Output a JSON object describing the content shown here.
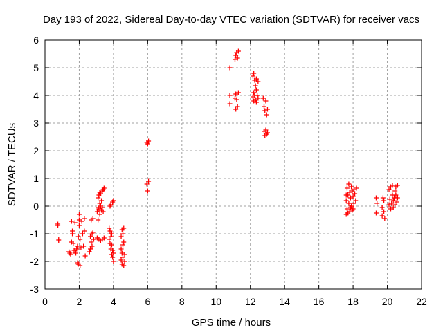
{
  "chart_data": {
    "type": "scatter",
    "title": "Day 193 of 2022, Sidereal Day-to-day VTEC variation (SDTVAR) for receiver vacs",
    "xlabel": "GPS time / hours",
    "ylabel": "SDTVAR / TECUs",
    "xlim": [
      0,
      22
    ],
    "ylim": [
      -3,
      6
    ],
    "xticks": [
      "0",
      "2",
      "4",
      "6",
      "8",
      "10",
      "12",
      "14",
      "16",
      "18",
      "20",
      "22"
    ],
    "yticks": [
      "-3",
      "-2",
      "-1",
      "0",
      "1",
      "2",
      "3",
      "4",
      "5",
      "6"
    ],
    "grid": true,
    "marker": "plus",
    "series": [
      {
        "name": "SDTVAR",
        "color": "#ff0000",
        "points": [
          [
            0.75,
            -0.65
          ],
          [
            0.75,
            -0.7
          ],
          [
            0.8,
            -1.2
          ],
          [
            0.8,
            -1.25
          ],
          [
            1.4,
            -1.65
          ],
          [
            1.45,
            -1.7
          ],
          [
            1.5,
            -1.75
          ],
          [
            1.55,
            -0.55
          ],
          [
            1.55,
            -1.3
          ],
          [
            1.6,
            -0.9
          ],
          [
            1.6,
            -1.0
          ],
          [
            1.65,
            -1.35
          ],
          [
            1.7,
            -1.6
          ],
          [
            1.75,
            -0.6
          ],
          [
            1.8,
            -1.7
          ],
          [
            1.85,
            -1.55
          ],
          [
            1.9,
            -1.45
          ],
          [
            1.9,
            -2.05
          ],
          [
            1.95,
            -2.1
          ],
          [
            1.95,
            -1.1
          ],
          [
            2.0,
            -0.3
          ],
          [
            2.0,
            -0.5
          ],
          [
            2.0,
            -0.7
          ],
          [
            2.05,
            -1.2
          ],
          [
            2.05,
            -2.15
          ],
          [
            2.1,
            -1.5
          ],
          [
            2.15,
            -0.55
          ],
          [
            2.2,
            -1.0
          ],
          [
            2.25,
            -1.45
          ],
          [
            2.3,
            -0.9
          ],
          [
            2.3,
            -0.45
          ],
          [
            2.35,
            -1.8
          ],
          [
            2.6,
            -1.65
          ],
          [
            2.65,
            -1.55
          ],
          [
            2.65,
            -1.1
          ],
          [
            2.7,
            -1.3
          ],
          [
            2.7,
            -0.5
          ],
          [
            2.75,
            -1.45
          ],
          [
            2.75,
            -1.0
          ],
          [
            2.8,
            -0.95
          ],
          [
            2.8,
            -0.45
          ],
          [
            2.85,
            -1.2
          ],
          [
            3.05,
            -0.2
          ],
          [
            3.05,
            -1.15
          ],
          [
            3.1,
            0.3
          ],
          [
            3.1,
            -0.05
          ],
          [
            3.1,
            -0.5
          ],
          [
            3.15,
            0.4
          ],
          [
            3.15,
            -0.1
          ],
          [
            3.15,
            -1.2
          ],
          [
            3.2,
            0.5
          ],
          [
            3.2,
            0.1
          ],
          [
            3.2,
            -0.3
          ],
          [
            3.25,
            0.45
          ],
          [
            3.25,
            0.0
          ],
          [
            3.25,
            -1.25
          ],
          [
            3.3,
            0.2
          ],
          [
            3.3,
            -0.15
          ],
          [
            3.35,
            0.55
          ],
          [
            3.35,
            -0.05
          ],
          [
            3.35,
            -1.2
          ],
          [
            3.4,
            0.6
          ],
          [
            3.4,
            -0.2
          ],
          [
            3.45,
            0.65
          ],
          [
            3.45,
            -1.15
          ],
          [
            3.75,
            -0.8
          ],
          [
            3.75,
            -1.2
          ],
          [
            3.8,
            -0.9
          ],
          [
            3.8,
            -1.35
          ],
          [
            3.8,
            0.0
          ],
          [
            3.85,
            -1.1
          ],
          [
            3.85,
            -1.55
          ],
          [
            3.85,
            0.05
          ],
          [
            3.9,
            -1.4
          ],
          [
            3.9,
            -1.75
          ],
          [
            3.9,
            -1.0
          ],
          [
            3.95,
            -1.6
          ],
          [
            3.95,
            -1.85
          ],
          [
            3.95,
            0.15
          ],
          [
            4.0,
            -1.7
          ],
          [
            4.0,
            -2.0
          ],
          [
            4.0,
            0.2
          ],
          [
            4.45,
            -1.1
          ],
          [
            4.45,
            -1.55
          ],
          [
            4.45,
            -1.95
          ],
          [
            4.5,
            -0.85
          ],
          [
            4.5,
            -1.7
          ],
          [
            4.5,
            -2.1
          ],
          [
            4.55,
            -1.0
          ],
          [
            4.55,
            -1.4
          ],
          [
            4.55,
            -1.85
          ],
          [
            4.6,
            -0.8
          ],
          [
            4.6,
            -1.3
          ],
          [
            4.6,
            -2.15
          ],
          [
            4.65,
            -1.75
          ],
          [
            4.65,
            -2.0
          ],
          [
            5.95,
            2.3
          ],
          [
            5.95,
            0.8
          ],
          [
            6.0,
            2.25
          ],
          [
            6.0,
            0.55
          ],
          [
            6.05,
            2.35
          ],
          [
            6.05,
            0.9
          ],
          [
            10.8,
            5.0
          ],
          [
            10.8,
            4.0
          ],
          [
            10.8,
            3.7
          ],
          [
            11.1,
            5.3
          ],
          [
            11.1,
            3.9
          ],
          [
            11.15,
            5.45
          ],
          [
            11.15,
            4.05
          ],
          [
            11.15,
            3.5
          ],
          [
            11.2,
            5.55
          ],
          [
            11.2,
            3.85
          ],
          [
            11.25,
            5.35
          ],
          [
            11.25,
            3.6
          ],
          [
            11.3,
            5.6
          ],
          [
            11.3,
            4.1
          ],
          [
            12.15,
            4.7
          ],
          [
            12.15,
            3.95
          ],
          [
            12.2,
            4.8
          ],
          [
            12.2,
            4.1
          ],
          [
            12.2,
            3.8
          ],
          [
            12.25,
            4.55
          ],
          [
            12.25,
            4.0
          ],
          [
            12.3,
            4.35
          ],
          [
            12.3,
            3.85
          ],
          [
            12.35,
            4.6
          ],
          [
            12.35,
            4.2
          ],
          [
            12.35,
            3.75
          ],
          [
            12.4,
            4.0
          ],
          [
            12.45,
            4.5
          ],
          [
            12.45,
            3.9
          ],
          [
            12.75,
            3.9
          ],
          [
            12.8,
            3.6
          ],
          [
            12.8,
            2.7
          ],
          [
            12.85,
            3.45
          ],
          [
            12.85,
            2.55
          ],
          [
            12.9,
            3.8
          ],
          [
            12.9,
            2.75
          ],
          [
            12.95,
            3.3
          ],
          [
            12.95,
            2.6
          ],
          [
            13.0,
            3.5
          ],
          [
            13.0,
            2.65
          ],
          [
            17.6,
            -0.3
          ],
          [
            17.6,
            0.2
          ],
          [
            17.65,
            0.65
          ],
          [
            17.65,
            -0.1
          ],
          [
            17.7,
            0.4
          ],
          [
            17.7,
            -0.25
          ],
          [
            17.75,
            0.8
          ],
          [
            17.75,
            0.1
          ],
          [
            17.8,
            0.5
          ],
          [
            17.8,
            -0.2
          ],
          [
            17.85,
            0.3
          ],
          [
            17.85,
            -0.05
          ],
          [
            17.9,
            0.7
          ],
          [
            17.9,
            0.0
          ],
          [
            17.95,
            0.55
          ],
          [
            17.95,
            -0.15
          ],
          [
            18.0,
            0.35
          ],
          [
            18.0,
            -0.1
          ],
          [
            18.05,
            0.6
          ],
          [
            18.05,
            0.1
          ],
          [
            18.1,
            0.45
          ],
          [
            18.15,
            0.2
          ],
          [
            18.2,
            0.65
          ],
          [
            17.6,
            0.4
          ],
          [
            19.35,
            0.3
          ],
          [
            19.35,
            -0.25
          ],
          [
            19.4,
            0.1
          ],
          [
            19.7,
            -0.05
          ],
          [
            19.7,
            -0.35
          ],
          [
            19.75,
            0.3
          ],
          [
            19.8,
            0.2
          ],
          [
            19.8,
            -0.2
          ],
          [
            19.85,
            -0.45
          ],
          [
            20.1,
            0.05
          ],
          [
            20.1,
            0.6
          ],
          [
            20.15,
            0.25
          ],
          [
            20.2,
            0.7
          ],
          [
            20.2,
            -0.1
          ],
          [
            20.25,
            0.1
          ],
          [
            20.3,
            0.4
          ],
          [
            20.3,
            0.75
          ],
          [
            20.35,
            0.2
          ],
          [
            20.35,
            -0.05
          ],
          [
            20.4,
            0.3
          ],
          [
            20.45,
            0.55
          ],
          [
            20.45,
            0.05
          ],
          [
            20.5,
            0.4
          ],
          [
            20.5,
            0.7
          ],
          [
            20.55,
            0.15
          ],
          [
            20.6,
            0.3
          ],
          [
            20.6,
            0.75
          ]
        ]
      }
    ]
  }
}
